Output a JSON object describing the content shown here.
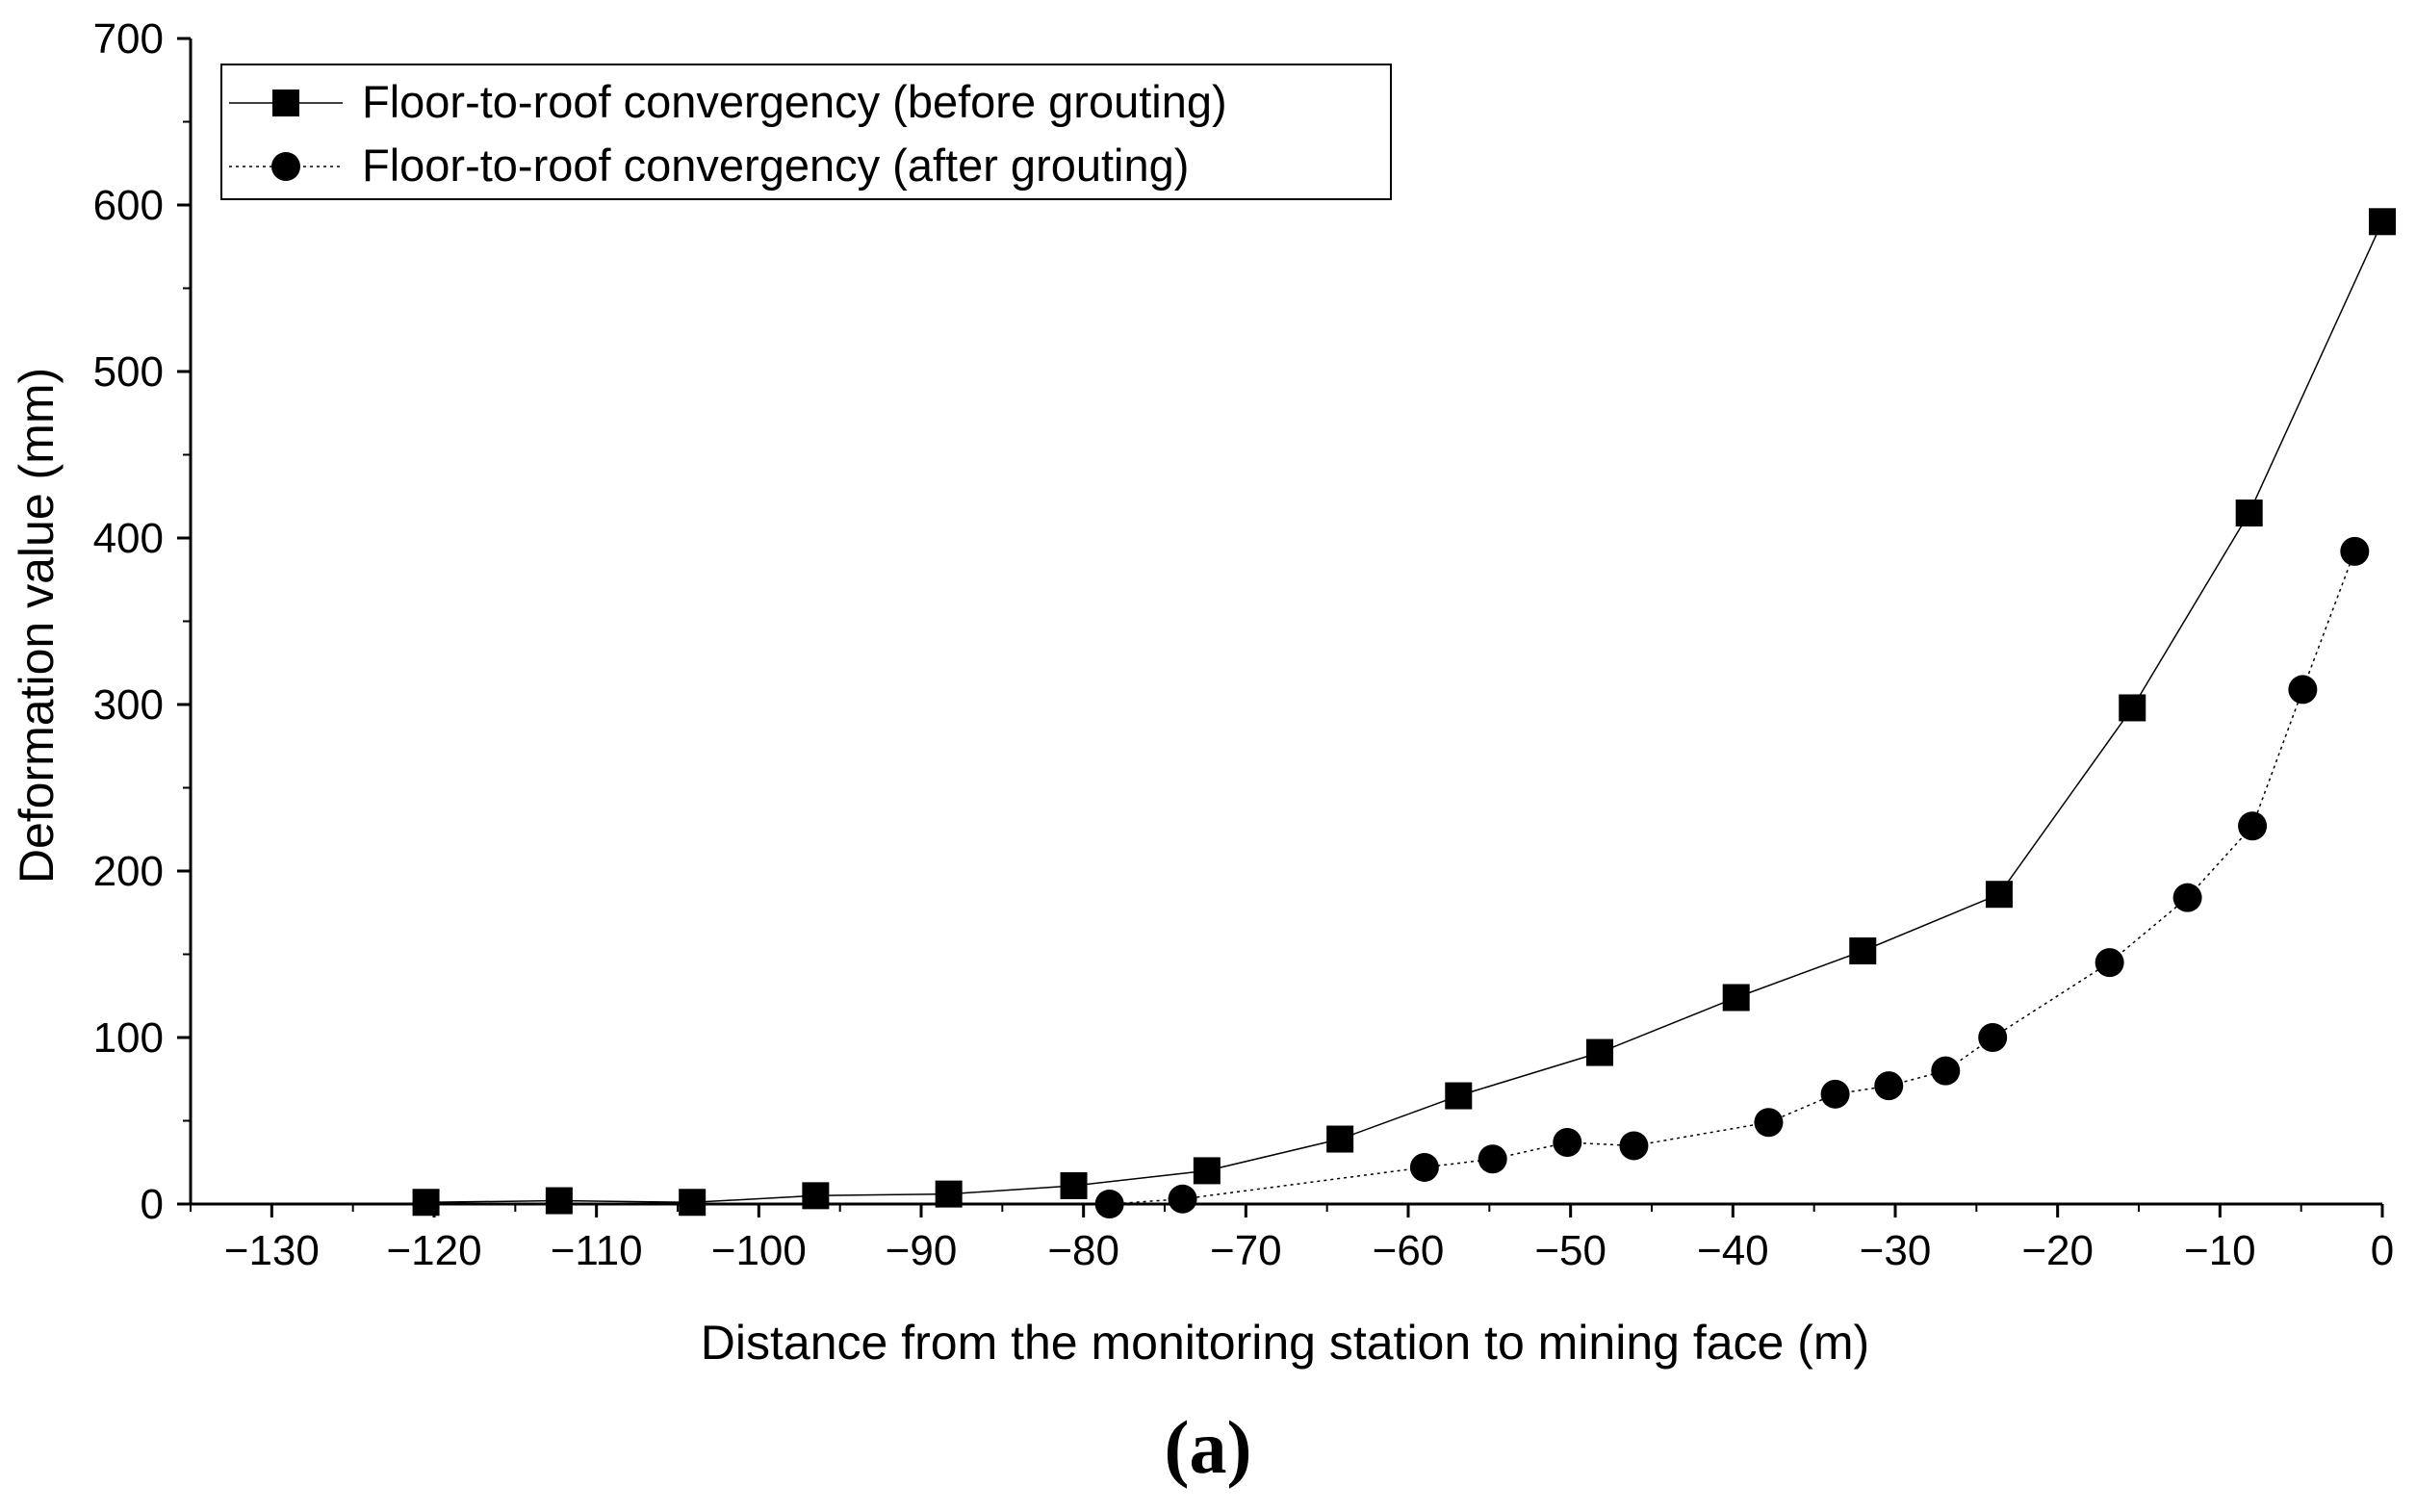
{
  "chart_data": {
    "type": "line",
    "title": "",
    "xlabel": "Distance from the monitoring station to mining face (m)",
    "ylabel": "Deformation value (mm)",
    "xlim": [
      -135,
      0
    ],
    "ylim": [
      0,
      700
    ],
    "x_ticks": [
      -130,
      -120,
      -110,
      -100,
      -90,
      -80,
      -70,
      -60,
      -50,
      -40,
      -30,
      -20,
      -10,
      0
    ],
    "x_tick_labels": [
      "−130",
      "−120",
      "−110",
      "−100",
      "−90",
      "−80",
      "−70",
      "−60",
      "−50",
      "−40",
      "−30",
      "−20",
      "−10",
      "0"
    ],
    "y_ticks": [
      0,
      100,
      200,
      300,
      400,
      500,
      600,
      700
    ],
    "y_tick_labels": [
      "0",
      "100",
      "200",
      "300",
      "400",
      "500",
      "600",
      "700"
    ],
    "legend_position": "top-left",
    "grid": false,
    "series": [
      {
        "name": "Floor-to-roof convergency (before grouting)",
        "marker": "square",
        "line_style": "solid",
        "x": [
          -120.5,
          -112.3,
          -104.1,
          -96.5,
          -88.3,
          -80.6,
          -72.4,
          -64.2,
          -56.9,
          -48.2,
          -39.8,
          -32.0,
          -23.6,
          -15.4,
          -8.2,
          0
        ],
        "y": [
          1,
          2,
          1,
          5,
          6,
          11,
          20,
          39,
          65,
          91,
          124,
          152,
          186,
          298,
          415,
          590
        ]
      },
      {
        "name": "Floor-to-roof convergency (after grouting)",
        "marker": "circle",
        "line_style": "dotted",
        "x": [
          -78.4,
          -73.9,
          -59.0,
          -54.8,
          -50.2,
          -46.1,
          -37.8,
          -33.7,
          -30.4,
          -26.9,
          -24.0,
          -16.8,
          -12.0,
          -8.0,
          -4.9,
          -1.7
        ],
        "y": [
          0,
          3,
          22,
          27,
          37,
          35,
          49,
          66,
          71,
          80,
          100,
          145,
          184,
          227,
          309,
          392
        ]
      }
    ]
  },
  "panel_label": "(a)"
}
